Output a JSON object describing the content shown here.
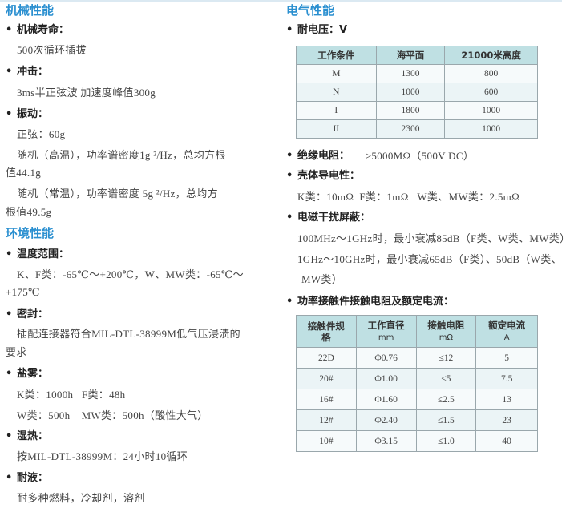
{
  "mechanical": {
    "title": "机械性能",
    "life_label": "机械寿命：",
    "life_text": "500次循环插拔",
    "shock_label": "冲击：",
    "shock_text": "3ms半正弦波 加速度峰值300g",
    "vibration_label": "振动：",
    "vib_sine": "正弦：60g",
    "vib_high_1": "随机（高温），功率谱密度1g ²/Hz，总均方根",
    "vib_high_2": "值44.1g",
    "vib_room_1": "随机（常温），功率谱密度 5g ²/Hz，总均方",
    "vib_room_2": "根值49.5g"
  },
  "environmental": {
    "title": "环境性能",
    "temp_label": "温度范围：",
    "temp_1": "K、F类：-65℃～+200℃，W、MW类：-65℃～",
    "temp_2": "+175℃",
    "seal_label": "密封：",
    "seal_1": "插配连接器符合MIL-DTL-38999M低气压浸渍的",
    "seal_2": "要求",
    "salt_label": "盐雾：",
    "salt_1": "K类：1000h   F类：48h",
    "salt_2": "W类：500h    MW类：500h（酸性大气）",
    "humid_label": "湿热：",
    "humid_text": "按MIL-DTL-38999M：24小时10循环",
    "fluid_label": "耐液：",
    "fluid_text": "耐多种燃料，冷却剂，溶剂"
  },
  "electrical": {
    "title": "电气性能",
    "voltage_label": "耐电压：V",
    "voltage_table": {
      "headers": [
        "工作条件",
        "海平面",
        "21000米高度"
      ],
      "rows": [
        [
          "M",
          "1300",
          "800"
        ],
        [
          "N",
          "1000",
          "600"
        ],
        [
          "I",
          "1800",
          "1000"
        ],
        [
          "II",
          "2300",
          "1000"
        ]
      ]
    },
    "insulation_label": "绝缘电阻：",
    "insulation_text": "≥5000MΩ（500V DC）",
    "shell_label": "壳体导电性：",
    "shell_text": "K类：10mΩ  F类：1mΩ   W类、MW类：2.5mΩ",
    "emi_label": "电磁干扰屏蔽：",
    "emi_1": "100MHz～1GHz时，最小衰减85dB（F类、W类、MW类）",
    "emi_2": "1GHz～10GHz时，最小衰减65dB（F类）、50dB（W类、",
    "emi_3": "MW类）",
    "contact_label": "功率接触件接触电阻及额定电流：",
    "contact_table": {
      "headers": [
        [
          "接触件规",
          "格"
        ],
        [
          "工作直径",
          "mm"
        ],
        [
          "接触电阻",
          "mΩ"
        ],
        [
          "额定电流",
          "A"
        ]
      ],
      "rows": [
        [
          "22D",
          "Φ0.76",
          "≤12",
          "5"
        ],
        [
          "20#",
          "Φ1.00",
          "≤5",
          "7.5"
        ],
        [
          "16#",
          "Φ1.60",
          "≤2.5",
          "13"
        ],
        [
          "12#",
          "Φ2.40",
          "≤1.5",
          "23"
        ],
        [
          "10#",
          "Φ3.15",
          "≤1.0",
          "40"
        ]
      ]
    }
  }
}
